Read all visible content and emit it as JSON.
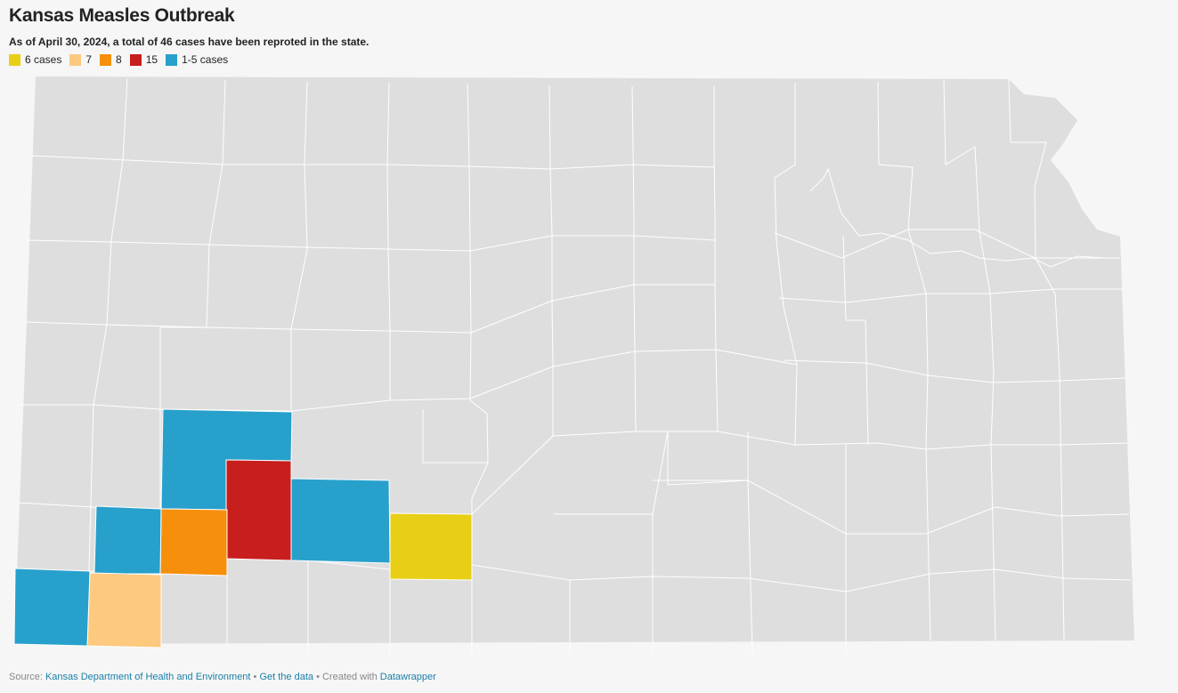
{
  "header": {
    "title": "Kansas Measles Outbreak",
    "subtitle": "As of April 30, 2024, a total of 46 cases have been reproted in the state."
  },
  "legend": [
    {
      "label": "6 cases",
      "color": "#e8cf16"
    },
    {
      "label": "7",
      "color": "#fcc97f"
    },
    {
      "label": "8",
      "color": "#f68f0b"
    },
    {
      "label": "15",
      "color": "#c81e1e"
    },
    {
      "label": "1-5 cases",
      "color": "#27a0cc"
    }
  ],
  "map": {
    "base_color": "#dedede",
    "border_color": "#ffffff"
  },
  "footer": {
    "source_prefix": "Source: ",
    "source_link": "Kansas Department of Health and Environment",
    "separator": " • ",
    "data_link": "Get the data",
    "created_prefix": " • Created with ",
    "tool_link": "Datawrapper"
  }
}
